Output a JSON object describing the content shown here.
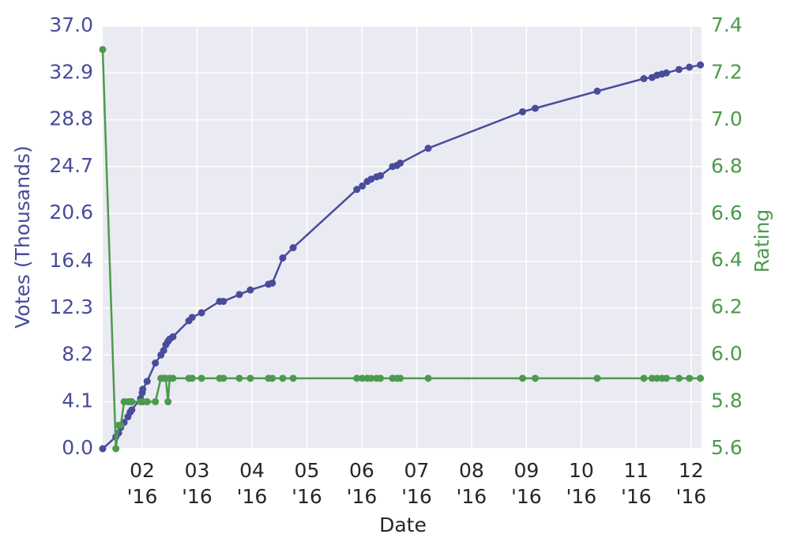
{
  "chart_data": {
    "type": "line",
    "x_label": "Date",
    "y_label": "Votes (Thousands)",
    "y2_label": "Rating",
    "x": [
      1.28,
      1.52,
      1.57,
      1.61,
      1.67,
      1.74,
      1.78,
      1.81,
      1.97,
      2.0,
      2.01,
      2.09,
      2.24,
      2.34,
      2.39,
      2.43,
      2.47,
      2.5,
      2.56,
      2.85,
      2.91,
      3.08,
      3.41,
      3.48,
      3.77,
      3.97,
      4.3,
      4.37,
      4.56,
      4.75,
      5.91,
      6.01,
      6.1,
      6.17,
      6.27,
      6.34,
      6.56,
      6.64,
      6.7,
      7.21,
      8.93,
      9.16,
      10.29,
      11.14,
      11.29,
      11.38,
      11.47,
      11.55,
      11.78,
      11.97,
      12.17
    ],
    "series": [
      {
        "color": "#484c9a",
        "values": [
          0,
          1.04,
          1.38,
          1.87,
          2.3,
          2.8,
          3.2,
          3.4,
          4.4,
          4.9,
          5.2,
          5.9,
          7.5,
          8.2,
          8.6,
          9.1,
          9.4,
          9.6,
          9.8,
          11.2,
          11.5,
          11.9,
          12.9,
          12.9,
          13.5,
          13.9,
          14.4,
          14.5,
          16.7,
          17.6,
          22.7,
          23.0,
          23.4,
          23.6,
          23.8,
          23.9,
          24.7,
          24.8,
          25.0,
          26.3,
          29.5,
          29.8,
          31.3,
          32.4,
          32.5,
          32.7,
          32.8,
          32.9,
          33.2,
          33.4,
          33.6
        ]
      },
      {
        "color": "#4c9a4c",
        "axis": "y2",
        "values": [
          7.3,
          5.6,
          5.7,
          5.7,
          5.8,
          5.8,
          5.8,
          5.8,
          5.8,
          5.8,
          5.8,
          5.8,
          5.8,
          5.9,
          5.9,
          5.9,
          5.8,
          5.9,
          5.9,
          5.9,
          5.9,
          5.9,
          5.9,
          5.9,
          5.9,
          5.9,
          5.9,
          5.9,
          5.9,
          5.9,
          5.9,
          5.9,
          5.9,
          5.9,
          5.9,
          5.9,
          5.9,
          5.9,
          5.9,
          5.9,
          5.9,
          5.9,
          5.9,
          5.9,
          5.9,
          5.9,
          5.9,
          5.9,
          5.9,
          5.9,
          5.9
        ]
      }
    ],
    "xlim": [
      1.28,
      12.19
    ],
    "xticks": [
      {
        "value": 2,
        "label": "02\n'16"
      },
      {
        "value": 3,
        "label": "03\n'16"
      },
      {
        "value": 4,
        "label": "04\n'16"
      },
      {
        "value": 5,
        "label": "05\n'16"
      },
      {
        "value": 6,
        "label": "06\n'16"
      },
      {
        "value": 7,
        "label": "07\n'16"
      },
      {
        "value": 8,
        "label": "08\n'16"
      },
      {
        "value": 9,
        "label": "09\n'16"
      },
      {
        "value": 10,
        "label": "10\n'16"
      },
      {
        "value": 11,
        "label": "11\n'16"
      },
      {
        "value": 12,
        "label": "12\n'16"
      }
    ],
    "ylim": [
      0,
      37
    ],
    "yticks": [
      {
        "value": 0,
        "label": "0.0"
      },
      4.1,
      8.2,
      12.3,
      16.4,
      20.6,
      24.7,
      28.8,
      32.9,
      {
        "value": 37,
        "label": "37.0"
      }
    ],
    "y2lim": [
      5.6,
      7.4
    ],
    "y2ticks": [
      5.6,
      5.8,
      {
        "value": 6,
        "label": "6.0"
      },
      6.2,
      6.4,
      6.6,
      6.8,
      {
        "value": 7,
        "label": "7.0"
      },
      7.2,
      7.4
    ],
    "grid": true
  }
}
